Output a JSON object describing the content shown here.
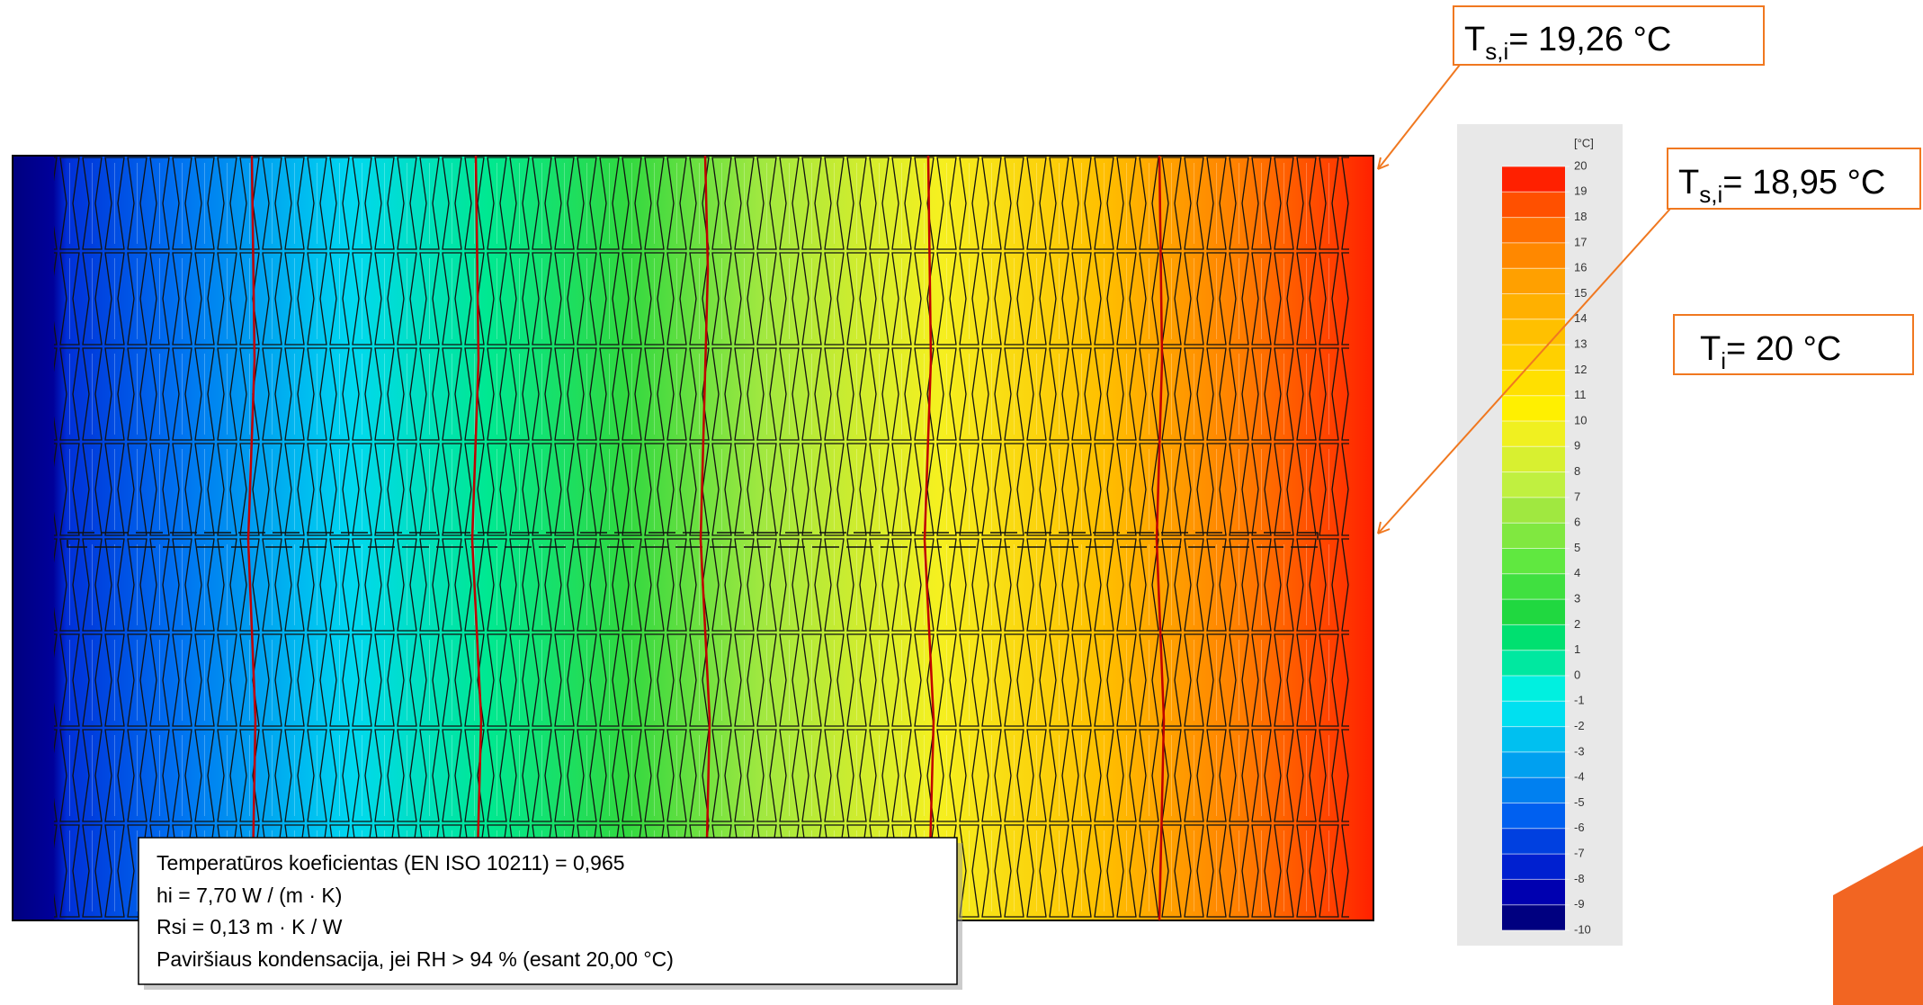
{
  "callouts": [
    {
      "symbol": "T",
      "subscript": "s,i",
      "value": "= 19,26 °C"
    },
    {
      "symbol": "T",
      "subscript": "s,i",
      "value": "= 18,95 °C"
    },
    {
      "symbol": "T",
      "subscript": "i",
      "value": "= 20 °C"
    }
  ],
  "legend": {
    "unit": "[°C]",
    "ticks": [
      20,
      19,
      18,
      17,
      16,
      15,
      14,
      13,
      12,
      11,
      10,
      9,
      8,
      7,
      6,
      5,
      4,
      3,
      2,
      1,
      0,
      -1,
      -2,
      -3,
      -4,
      -5,
      -6,
      -7,
      -8,
      -9,
      -10
    ]
  },
  "info_box": {
    "lines": [
      "Temperatūros koeficientas (EN ISO 10211) = 0,965",
      "hi = 7,70 W  / (m · K)",
      "Rsi = 0,13 m · K / W",
      "Paviršiaus kondensacija, jei RH > 94 % (esant 20,00 °C)"
    ]
  }
}
